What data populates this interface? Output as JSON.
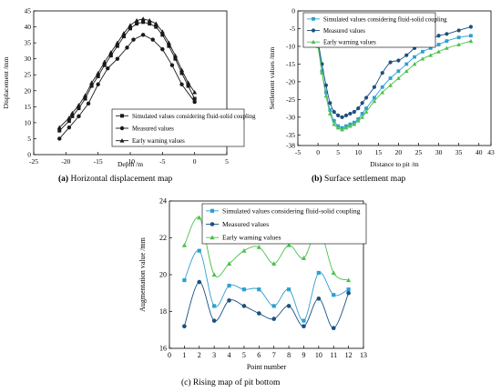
{
  "chart_data": [
    {
      "type": "line",
      "caption_tag": "(a)",
      "caption": "Horizontal displacement map",
      "xlabel": "Depth /m",
      "ylabel": "Displacement /mm",
      "xlim": [
        -25,
        5
      ],
      "ylim": [
        0,
        45
      ],
      "xticks": [
        -25,
        -20,
        -15,
        -10,
        -5,
        0,
        5
      ],
      "yticks": [
        0,
        5,
        10,
        15,
        20,
        25,
        30,
        35,
        40,
        45
      ],
      "legend_position": "bottom-right",
      "series": [
        {
          "name": "Simulated values considering fluid-solid coupling",
          "color": "#1a1a1a",
          "marker": "square",
          "x": [
            -21,
            -19.5,
            -19,
            -18,
            -17,
            -16,
            -15,
            -14,
            -13,
            -12,
            -11,
            -10,
            -9,
            -8,
            -7,
            -6,
            -5,
            -4,
            -3,
            -2,
            -1,
            0
          ],
          "y": [
            7.5,
            10.5,
            12,
            14.5,
            17.5,
            21.5,
            24.5,
            28,
            31,
            34,
            37,
            39.5,
            41,
            41.5,
            41,
            40,
            37.5,
            34,
            30,
            25.5,
            21.5,
            17.5
          ]
        },
        {
          "name": "Measured values",
          "color": "#1a1a1a",
          "marker": "circle",
          "x": [
            -21,
            -19.5,
            -18,
            -16.5,
            -15,
            -13.5,
            -12,
            -10.5,
            -9.5,
            -8,
            -6.5,
            -5,
            -3.5,
            -2,
            0
          ],
          "y": [
            5,
            8.5,
            12,
            16,
            22,
            27,
            30,
            33.5,
            36,
            37.5,
            36,
            33,
            28,
            22,
            16.5
          ]
        },
        {
          "name": "Early warning values",
          "color": "#1a1a1a",
          "marker": "triangle",
          "x": [
            -21,
            -19.5,
            -19,
            -18,
            -17,
            -16,
            -15,
            -14,
            -13,
            -12,
            -11,
            -10,
            -9,
            -8,
            -7,
            -6,
            -5,
            -4,
            -3,
            -2,
            -1,
            0
          ],
          "y": [
            8.5,
            11.5,
            13,
            15.5,
            18.5,
            22.5,
            25.5,
            29,
            32,
            35,
            38,
            40.5,
            42,
            42.5,
            42,
            41,
            38.5,
            35,
            31,
            26.5,
            22.5,
            19.5
          ]
        }
      ]
    },
    {
      "type": "line",
      "caption_tag": "(b)",
      "caption": "Surface settlement map",
      "xlabel": "Distance to pit /m",
      "ylabel": "Settlement values /mm",
      "xlim": [
        -5,
        43
      ],
      "ylim": [
        -38,
        0
      ],
      "xticks": [
        -5,
        0,
        5,
        10,
        15,
        20,
        25,
        30,
        35,
        40,
        43
      ],
      "yticks": [
        0,
        -5,
        -10,
        -15,
        -20,
        -25,
        -30,
        -35,
        -38
      ],
      "legend_position": "top-left",
      "series": [
        {
          "name": "Simulated values considering fluid-solid coupling",
          "color": "#2f9fd0",
          "marker": "square",
          "x": [
            0,
            1,
            2,
            3,
            4,
            5,
            6,
            7,
            8,
            9,
            10,
            11,
            12,
            14,
            16,
            18,
            20,
            22,
            24,
            26,
            28,
            30,
            32,
            35,
            38
          ],
          "y": [
            -9,
            -17,
            -23,
            -28,
            -31,
            -32.5,
            -33,
            -32.5,
            -32,
            -31.5,
            -30.5,
            -29,
            -27.5,
            -24.5,
            -21.5,
            -19,
            -17,
            -15,
            -13,
            -11.5,
            -10.5,
            -9.5,
            -8.5,
            -7.5,
            -7
          ]
        },
        {
          "name": "Measured values",
          "color": "#1b4f7f",
          "marker": "circle",
          "x": [
            0,
            1,
            2,
            3,
            4,
            5,
            6,
            7,
            8,
            9,
            10,
            11,
            12,
            14,
            16,
            18,
            20,
            22,
            24,
            26,
            28,
            30,
            32,
            35,
            38
          ],
          "y": [
            -8.5,
            -15,
            -21,
            -26,
            -28.5,
            -29.5,
            -30,
            -29.5,
            -29,
            -28.5,
            -27.5,
            -26,
            -24.5,
            -21.5,
            -17.5,
            -14.5,
            -14,
            -12.5,
            -10.5,
            -9,
            -8,
            -7,
            -6.5,
            -5.5,
            -4.5
          ]
        },
        {
          "name": "Early warning values",
          "color": "#4cc24a",
          "marker": "triangle",
          "x": [
            0,
            1,
            2,
            3,
            4,
            5,
            6,
            7,
            8,
            9,
            10,
            11,
            12,
            14,
            16,
            18,
            20,
            22,
            24,
            26,
            28,
            30,
            32,
            35,
            38
          ],
          "y": [
            -10,
            -17.5,
            -24,
            -29,
            -32,
            -33,
            -33.5,
            -33,
            -32.5,
            -32,
            -31,
            -30,
            -28.5,
            -25.5,
            -23,
            -21,
            -19,
            -17,
            -15,
            -13.5,
            -12.5,
            -11.5,
            -10.5,
            -9.5,
            -8.5
          ]
        }
      ]
    },
    {
      "type": "line",
      "caption_tag": "(c)",
      "caption": "Rising map of pit bottom",
      "xlabel": "Point number",
      "ylabel": "Augmentation value /mm",
      "xlim": [
        0,
        13
      ],
      "ylim": [
        16,
        24
      ],
      "xticks": [
        0,
        1,
        2,
        3,
        4,
        5,
        6,
        7,
        8,
        9,
        10,
        11,
        12,
        13
      ],
      "yticks": [
        16,
        18,
        20,
        22,
        24
      ],
      "legend_position": "top-right",
      "series": [
        {
          "name": "Simulated values considering fluid-solid coupling",
          "color": "#2f9fd0",
          "marker": "square",
          "x": [
            1,
            2,
            3,
            4,
            5,
            6,
            7,
            8,
            9,
            10,
            11,
            12
          ],
          "y": [
            19.7,
            21.3,
            18.3,
            19.4,
            19.2,
            19.2,
            18.3,
            19.2,
            17.5,
            20.1,
            18.9,
            19.2
          ]
        },
        {
          "name": "Measured values",
          "color": "#1b4f7f",
          "marker": "circle",
          "x": [
            1,
            2,
            3,
            4,
            5,
            6,
            7,
            8,
            9,
            10,
            11,
            12
          ],
          "y": [
            17.2,
            19.6,
            17.5,
            18.6,
            18.3,
            17.9,
            17.6,
            18.3,
            17.2,
            18.7,
            17.1,
            19.0
          ]
        },
        {
          "name": "Early warning values",
          "color": "#4cc24a",
          "marker": "triangle",
          "x": [
            1,
            2,
            3,
            4,
            5,
            6,
            7,
            8,
            9,
            10,
            11,
            12
          ],
          "y": [
            21.6,
            23.1,
            20.0,
            20.6,
            21.3,
            21.5,
            20.6,
            21.6,
            20.9,
            22.5,
            20.1,
            19.7
          ]
        }
      ]
    }
  ]
}
